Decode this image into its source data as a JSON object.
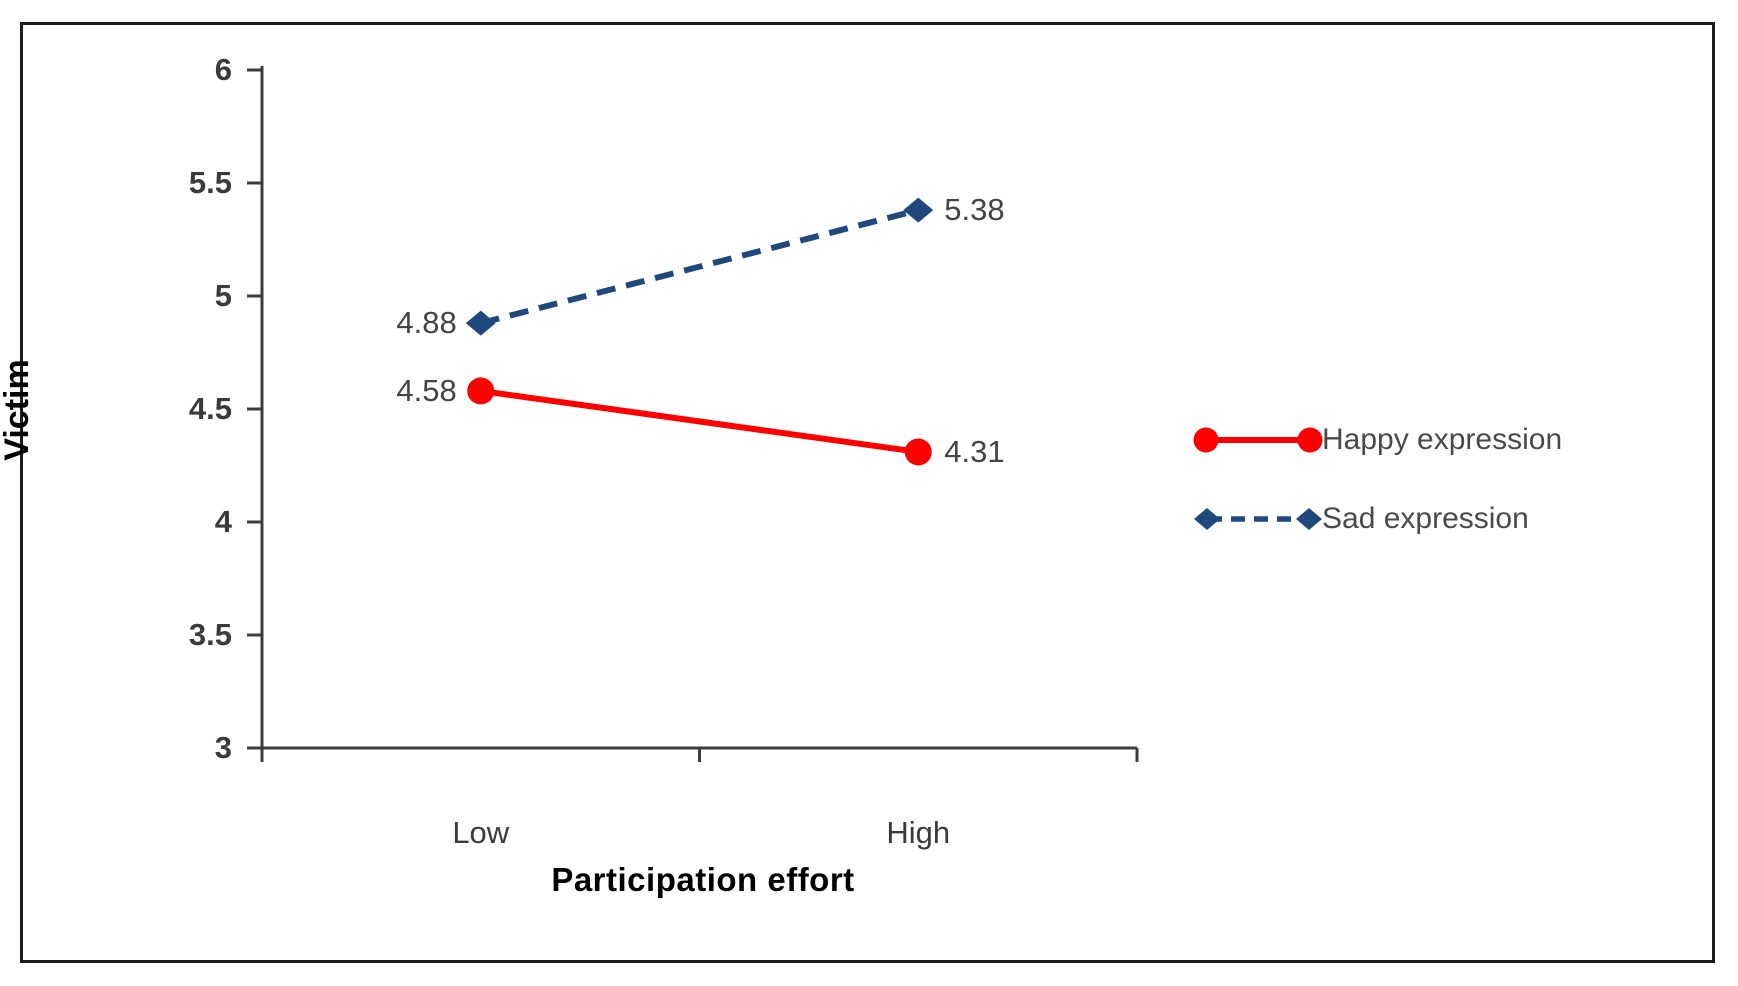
{
  "chart_data": {
    "type": "line",
    "title": "",
    "xlabel": "Participation effort",
    "ylabel": "Victim",
    "x_categories": [
      "Low",
      "High"
    ],
    "series": [
      {
        "name": "Happy expression",
        "color": "#ff0000",
        "line_style": "solid",
        "marker": "circle",
        "values": [
          4.58,
          4.31
        ],
        "data_labels": [
          "4.58",
          "4.31"
        ]
      },
      {
        "name": "Sad expression",
        "color": "#1f497d",
        "line_style": "dashed",
        "marker": "diamond",
        "values": [
          4.88,
          5.38
        ],
        "data_labels": [
          "4.88",
          "5.38"
        ]
      }
    ],
    "ylim": [
      3,
      6
    ],
    "yticks": [
      6,
      5.5,
      5,
      4.5,
      4,
      3.5,
      3
    ],
    "ytick_labels": [
      "6",
      "5.5",
      "5",
      "4.5",
      "4",
      "3.5",
      "3"
    ],
    "grid": false,
    "legend_position": "right-middle"
  },
  "styles": {
    "axis_color": "#3d3d3d",
    "tick_text_color": "#3b3b3b",
    "data_label_color": "#444444",
    "legend_text_color": "#4a4a4a",
    "border_color": "#1b1b1b",
    "background": "#ffffff"
  }
}
